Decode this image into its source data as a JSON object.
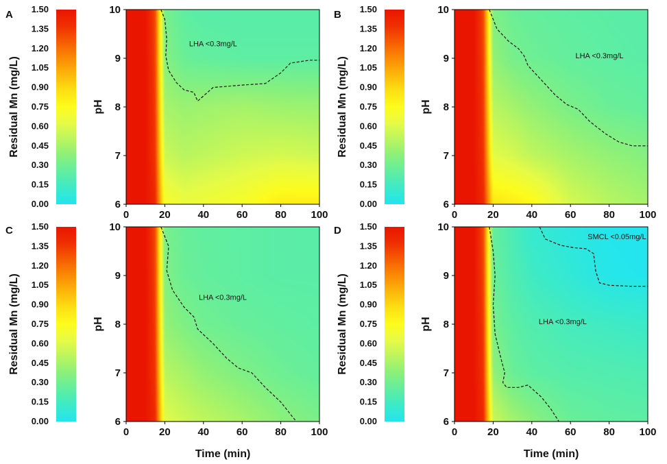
{
  "colors": {
    "scale": [
      "#22e5f0",
      "#3ceac8",
      "#61eea0",
      "#8af07b",
      "#b9f55f",
      "#e6fb46",
      "#fdfc1c",
      "#fde013",
      "#fcb70b",
      "#fb8b05",
      "#f65d03",
      "#ef2f02",
      "#ea1500"
    ]
  },
  "chart_data": [
    {
      "panel": "A",
      "type": "heatmap",
      "colorbar": {
        "label": "Residual Mn (mg/L)",
        "ticks": [
          "0.00",
          "0.15",
          "0.30",
          "0.45",
          "0.60",
          "0.75",
          "0.90",
          "1.05",
          "1.20",
          "1.35",
          "1.50"
        ],
        "range": [
          0,
          1.5
        ]
      },
      "xlabel": "",
      "ylabel": "pH",
      "xlim": [
        0,
        100
      ],
      "ylim": [
        6,
        10
      ],
      "xticks": [
        "0",
        "20",
        "40",
        "60",
        "80",
        "100"
      ],
      "yticks": [
        "6",
        "7",
        "8",
        "9",
        "10"
      ],
      "time_min": [
        0,
        10,
        15,
        20,
        30,
        40,
        60,
        80,
        100
      ],
      "pH": [
        6,
        7,
        8,
        9,
        10
      ],
      "residual_mn_mg_per_L": [
        [
          1.5,
          1.5,
          1.4,
          0.72,
          0.66,
          0.68,
          0.72,
          0.82,
          0.82
        ],
        [
          1.5,
          1.5,
          1.36,
          0.55,
          0.5,
          0.52,
          0.56,
          0.58,
          0.56
        ],
        [
          1.5,
          1.5,
          1.34,
          0.45,
          0.42,
          0.43,
          0.45,
          0.43,
          0.42
        ],
        [
          1.5,
          1.5,
          1.32,
          0.36,
          0.28,
          0.26,
          0.24,
          0.24,
          0.24
        ],
        [
          1.5,
          1.5,
          1.3,
          0.32,
          0.24,
          0.22,
          0.22,
          0.22,
          0.22
        ]
      ],
      "contours": [
        {
          "label": "LHA <0.3mg/L",
          "points": [
            [
              18,
              10
            ],
            [
              20,
              9.8
            ],
            [
              21,
              9.4
            ],
            [
              20.5,
              9.05
            ],
            [
              22,
              8.75
            ],
            [
              26,
              8.5
            ],
            [
              30,
              8.35
            ],
            [
              35,
              8.3
            ],
            [
              37,
              8.12
            ],
            [
              45,
              8.4
            ],
            [
              60,
              8.45
            ],
            [
              72,
              8.48
            ],
            [
              80,
              8.7
            ],
            [
              85,
              8.9
            ],
            [
              95,
              8.96
            ],
            [
              100,
              8.96
            ]
          ]
        }
      ],
      "annotations": [
        {
          "text": "LHA <0.3mg/L",
          "x": 45,
          "y": 9.25
        }
      ]
    },
    {
      "panel": "B",
      "type": "heatmap",
      "colorbar": {
        "label": "Residual Mn (mg/L)",
        "ticks": [
          "0.00",
          "0.15",
          "0.30",
          "0.45",
          "0.60",
          "0.75",
          "0.90",
          "1.05",
          "1.20",
          "1.35",
          "1.50"
        ],
        "range": [
          0,
          1.5
        ]
      },
      "xlabel": "",
      "ylabel": "pH",
      "xlim": [
        0,
        100
      ],
      "ylim": [
        6,
        10
      ],
      "xticks": [
        "0",
        "20",
        "40",
        "60",
        "80",
        "100"
      ],
      "yticks": [
        "6",
        "7",
        "8",
        "9",
        "10"
      ],
      "time_min": [
        0,
        10,
        15,
        20,
        30,
        40,
        60,
        80,
        100
      ],
      "pH": [
        6,
        7,
        8,
        9,
        10
      ],
      "residual_mn_mg_per_L": [
        [
          1.5,
          1.5,
          1.4,
          0.85,
          0.82,
          0.78,
          0.58,
          0.5,
          0.45
        ],
        [
          1.5,
          1.5,
          1.36,
          0.62,
          0.58,
          0.52,
          0.45,
          0.4,
          0.36
        ],
        [
          1.5,
          1.5,
          1.34,
          0.5,
          0.45,
          0.4,
          0.33,
          0.28,
          0.26
        ],
        [
          1.5,
          1.5,
          1.32,
          0.4,
          0.32,
          0.29,
          0.26,
          0.24,
          0.23
        ],
        [
          1.5,
          1.5,
          1.3,
          0.34,
          0.28,
          0.26,
          0.24,
          0.23,
          0.22
        ]
      ],
      "contours": [
        {
          "label": "LHA <0.3mg/L",
          "points": [
            [
              18,
              10
            ],
            [
              22,
              9.6
            ],
            [
              28,
              9.35
            ],
            [
              33,
              9.2
            ],
            [
              36,
              9.05
            ],
            [
              38,
              8.85
            ],
            [
              45,
              8.55
            ],
            [
              52,
              8.25
            ],
            [
              58,
              8.05
            ],
            [
              64,
              7.95
            ],
            [
              70,
              7.7
            ],
            [
              78,
              7.45
            ],
            [
              85,
              7.28
            ],
            [
              92,
              7.2
            ],
            [
              100,
              7.2
            ]
          ]
        }
      ],
      "annotations": [
        {
          "text": "LHA <0.3mg/L",
          "x": 75,
          "y": 9.0
        }
      ]
    },
    {
      "panel": "C",
      "type": "heatmap",
      "colorbar": {
        "label": "Residual Mn (mg/L)",
        "ticks": [
          "0.00",
          "0.15",
          "0.30",
          "0.45",
          "0.60",
          "0.75",
          "0.90",
          "1.05",
          "1.20",
          "1.35",
          "1.50"
        ],
        "range": [
          0,
          1.5
        ]
      },
      "xlabel": "Time (min)",
      "ylabel": "pH",
      "xlim": [
        0,
        100
      ],
      "ylim": [
        6,
        10
      ],
      "xticks": [
        "0",
        "20",
        "40",
        "60",
        "80",
        "100"
      ],
      "yticks": [
        "6",
        "7",
        "8",
        "9",
        "10"
      ],
      "time_min": [
        0,
        10,
        15,
        20,
        30,
        40,
        60,
        80,
        100
      ],
      "pH": [
        6,
        7,
        8,
        9,
        10
      ],
      "residual_mn_mg_per_L": [
        [
          1.5,
          1.5,
          1.4,
          0.62,
          0.56,
          0.52,
          0.46,
          0.38,
          0.33
        ],
        [
          1.5,
          1.5,
          1.36,
          0.5,
          0.45,
          0.4,
          0.34,
          0.29,
          0.26
        ],
        [
          1.5,
          1.5,
          1.34,
          0.4,
          0.34,
          0.3,
          0.27,
          0.25,
          0.24
        ],
        [
          1.5,
          1.5,
          1.32,
          0.35,
          0.28,
          0.26,
          0.24,
          0.23,
          0.23
        ],
        [
          1.5,
          1.5,
          1.3,
          0.32,
          0.27,
          0.25,
          0.24,
          0.23,
          0.22
        ]
      ],
      "contours": [
        {
          "label": "LHA <0.3mg/L",
          "points": [
            [
              18,
              10
            ],
            [
              22,
              9.6
            ],
            [
              21,
              9.1
            ],
            [
              24,
              8.7
            ],
            [
              30,
              8.35
            ],
            [
              35,
              8.15
            ],
            [
              37,
              7.9
            ],
            [
              45,
              7.6
            ],
            [
              52,
              7.3
            ],
            [
              58,
              7.1
            ],
            [
              65,
              7.0
            ],
            [
              72,
              6.7
            ],
            [
              80,
              6.4
            ],
            [
              88,
              6.0
            ]
          ]
        }
      ],
      "annotations": [
        {
          "text": "LHA <0.3mg/L",
          "x": 50,
          "y": 8.5
        }
      ]
    },
    {
      "panel": "D",
      "type": "heatmap",
      "colorbar": {
        "label": "Residual Mn (mg/L)",
        "ticks": [
          "0.00",
          "0.15",
          "0.30",
          "0.45",
          "0.60",
          "0.75",
          "0.90",
          "1.05",
          "1.20",
          "1.35",
          "1.50"
        ],
        "range": [
          0,
          1.5
        ]
      },
      "xlabel": "Time (min)",
      "ylabel": "pH",
      "xlim": [
        0,
        100
      ],
      "ylim": [
        6,
        10
      ],
      "xticks": [
        "0",
        "20",
        "40",
        "60",
        "80",
        "100"
      ],
      "yticks": [
        "6",
        "7",
        "8",
        "9",
        "10"
      ],
      "time_min": [
        0,
        10,
        15,
        20,
        30,
        40,
        60,
        80,
        100
      ],
      "pH": [
        6,
        7,
        8,
        9,
        10
      ],
      "residual_mn_mg_per_L": [
        [
          1.5,
          1.5,
          1.4,
          0.55,
          0.45,
          0.38,
          0.28,
          0.25,
          0.24
        ],
        [
          1.5,
          1.5,
          1.36,
          0.4,
          0.28,
          0.24,
          0.21,
          0.2,
          0.19
        ],
        [
          1.5,
          1.5,
          1.34,
          0.32,
          0.24,
          0.2,
          0.16,
          0.14,
          0.12
        ],
        [
          1.5,
          1.5,
          1.32,
          0.28,
          0.2,
          0.14,
          0.08,
          0.02,
          0.01
        ],
        [
          1.5,
          1.5,
          1.3,
          0.26,
          0.18,
          0.1,
          0.05,
          0.01,
          0.0
        ]
      ],
      "contours": [
        {
          "label": "LHA <0.3mg/L",
          "points": [
            [
              18,
              10
            ],
            [
              20,
              9.5
            ],
            [
              21,
              9.0
            ],
            [
              20,
              8.4
            ],
            [
              21,
              7.8
            ],
            [
              24,
              7.3
            ],
            [
              26,
              7.0
            ],
            [
              25,
              6.8
            ],
            [
              27,
              6.7
            ],
            [
              33,
              6.7
            ],
            [
              38,
              6.75
            ],
            [
              45,
              6.5
            ],
            [
              50,
              6.25
            ],
            [
              54,
              6.0
            ]
          ]
        },
        {
          "label": "SMCL <0.05mg/L",
          "points": [
            [
              44,
              10
            ],
            [
              47,
              9.75
            ],
            [
              55,
              9.62
            ],
            [
              62,
              9.57
            ],
            [
              68,
              9.55
            ],
            [
              72,
              9.45
            ],
            [
              73,
              9.1
            ],
            [
              75,
              8.85
            ],
            [
              80,
              8.8
            ],
            [
              90,
              8.78
            ],
            [
              100,
              8.78
            ]
          ]
        }
      ],
      "annotations": [
        {
          "text": "SMCL <0.05mg/L",
          "x": 84,
          "y": 9.75
        },
        {
          "text": "LHA <0.3mg/L",
          "x": 56,
          "y": 8.0
        }
      ]
    }
  ]
}
